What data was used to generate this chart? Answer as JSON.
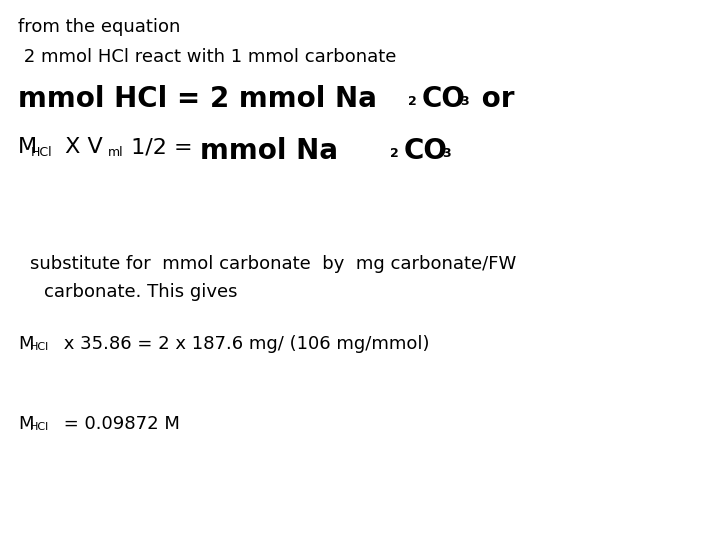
{
  "background_color": "#ffffff",
  "fig_width": 7.2,
  "fig_height": 5.4,
  "dpi": 100,
  "font_family": "DejaVu Sans",
  "fs_small": 13,
  "fs_large": 20,
  "fs_sub": 9,
  "fs_mid": 16
}
